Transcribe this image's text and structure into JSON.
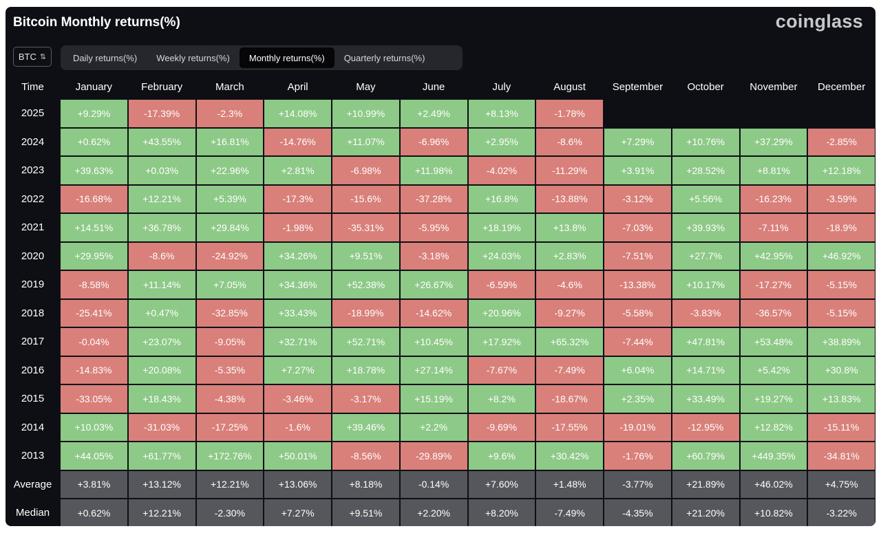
{
  "header": {
    "title": "Bitcoin Monthly returns(%)",
    "brand": "coinglass"
  },
  "selector": {
    "value": "BTC"
  },
  "tabs": [
    {
      "label": "Daily returns(%)",
      "active": false
    },
    {
      "label": "Weekly returns(%)",
      "active": false
    },
    {
      "label": "Monthly returns(%)",
      "active": true
    },
    {
      "label": "Quarterly returns(%)",
      "active": false
    }
  ],
  "table": {
    "time_label": "Time",
    "months": [
      "January",
      "February",
      "March",
      "April",
      "May",
      "June",
      "July",
      "August",
      "September",
      "October",
      "November",
      "December"
    ],
    "rows": [
      {
        "year": "2025",
        "values": [
          "+9.29%",
          "-17.39%",
          "-2.3%",
          "+14.08%",
          "+10.99%",
          "+2.49%",
          "+8.13%",
          "-1.78%",
          "",
          "",
          "",
          ""
        ]
      },
      {
        "year": "2024",
        "values": [
          "+0.62%",
          "+43.55%",
          "+16.81%",
          "-14.76%",
          "+11.07%",
          "-6.96%",
          "+2.95%",
          "-8.6%",
          "+7.29%",
          "+10.76%",
          "+37.29%",
          "-2.85%"
        ]
      },
      {
        "year": "2023",
        "values": [
          "+39.63%",
          "+0.03%",
          "+22.96%",
          "+2.81%",
          "-6.98%",
          "+11.98%",
          "-4.02%",
          "-11.29%",
          "+3.91%",
          "+28.52%",
          "+8.81%",
          "+12.18%"
        ]
      },
      {
        "year": "2022",
        "values": [
          "-16.68%",
          "+12.21%",
          "+5.39%",
          "-17.3%",
          "-15.6%",
          "-37.28%",
          "+16.8%",
          "-13.88%",
          "-3.12%",
          "+5.56%",
          "-16.23%",
          "-3.59%"
        ]
      },
      {
        "year": "2021",
        "values": [
          "+14.51%",
          "+36.78%",
          "+29.84%",
          "-1.98%",
          "-35.31%",
          "-5.95%",
          "+18.19%",
          "+13.8%",
          "-7.03%",
          "+39.93%",
          "-7.11%",
          "-18.9%"
        ]
      },
      {
        "year": "2020",
        "values": [
          "+29.95%",
          "-8.6%",
          "-24.92%",
          "+34.26%",
          "+9.51%",
          "-3.18%",
          "+24.03%",
          "+2.83%",
          "-7.51%",
          "+27.7%",
          "+42.95%",
          "+46.92%"
        ]
      },
      {
        "year": "2019",
        "values": [
          "-8.58%",
          "+11.14%",
          "+7.05%",
          "+34.36%",
          "+52.38%",
          "+26.67%",
          "-6.59%",
          "-4.6%",
          "-13.38%",
          "+10.17%",
          "-17.27%",
          "-5.15%"
        ]
      },
      {
        "year": "2018",
        "values": [
          "-25.41%",
          "+0.47%",
          "-32.85%",
          "+33.43%",
          "-18.99%",
          "-14.62%",
          "+20.96%",
          "-9.27%",
          "-5.58%",
          "-3.83%",
          "-36.57%",
          "-5.15%"
        ]
      },
      {
        "year": "2017",
        "values": [
          "-0.04%",
          "+23.07%",
          "-9.05%",
          "+32.71%",
          "+52.71%",
          "+10.45%",
          "+17.92%",
          "+65.32%",
          "-7.44%",
          "+47.81%",
          "+53.48%",
          "+38.89%"
        ]
      },
      {
        "year": "2016",
        "values": [
          "-14.83%",
          "+20.08%",
          "-5.35%",
          "+7.27%",
          "+18.78%",
          "+27.14%",
          "-7.67%",
          "-7.49%",
          "+6.04%",
          "+14.71%",
          "+5.42%",
          "+30.8%"
        ]
      },
      {
        "year": "2015",
        "values": [
          "-33.05%",
          "+18.43%",
          "-4.38%",
          "-3.46%",
          "-3.17%",
          "+15.19%",
          "+8.2%",
          "-18.67%",
          "+2.35%",
          "+33.49%",
          "+19.27%",
          "+13.83%"
        ]
      },
      {
        "year": "2014",
        "values": [
          "+10.03%",
          "-31.03%",
          "-17.25%",
          "-1.6%",
          "+39.46%",
          "+2.2%",
          "-9.69%",
          "-17.55%",
          "-19.01%",
          "-12.95%",
          "+12.82%",
          "-15.11%"
        ]
      },
      {
        "year": "2013",
        "values": [
          "+44.05%",
          "+61.77%",
          "+172.76%",
          "+50.01%",
          "-8.56%",
          "-29.89%",
          "+9.6%",
          "+30.42%",
          "-1.76%",
          "+60.79%",
          "+449.35%",
          "-34.81%"
        ]
      }
    ],
    "stats": [
      {
        "label": "Average",
        "values": [
          "+3.81%",
          "+13.12%",
          "+12.21%",
          "+13.06%",
          "+8.18%",
          "-0.14%",
          "+7.60%",
          "+1.48%",
          "-3.77%",
          "+21.89%",
          "+46.02%",
          "+4.75%"
        ]
      },
      {
        "label": "Median",
        "values": [
          "+0.62%",
          "+12.21%",
          "-2.30%",
          "+7.27%",
          "+9.51%",
          "+2.20%",
          "+8.20%",
          "-7.49%",
          "-4.35%",
          "+21.20%",
          "+10.82%",
          "-3.22%"
        ]
      }
    ]
  },
  "colors": {
    "positive": "#8dc987",
    "negative": "#d9807a",
    "stat": "#56575c",
    "background": "#0e0f14"
  }
}
